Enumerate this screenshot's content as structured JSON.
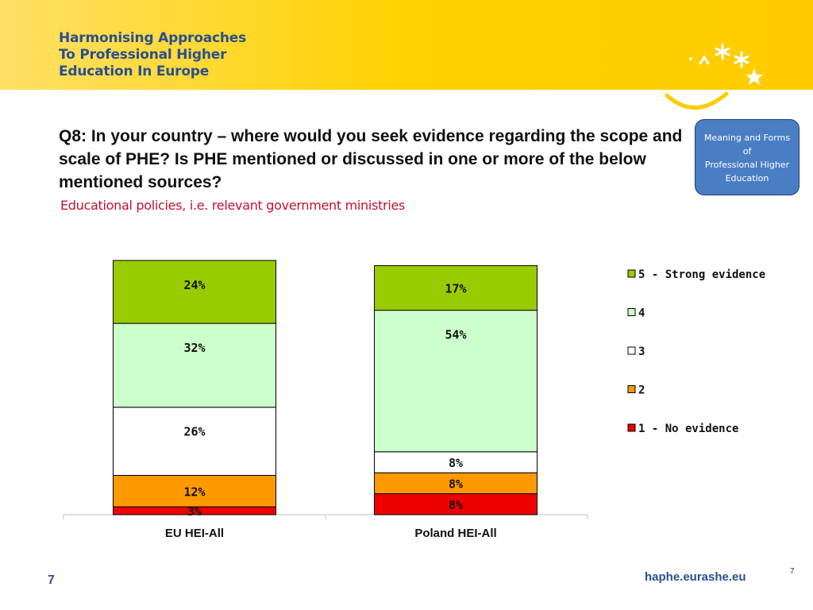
{
  "header": {
    "brand_lines": [
      "Harmonising Approaches",
      "To Professional Higher",
      "Education In Europe"
    ],
    "band_color": "#ffd100",
    "logo": "stars-and-smile-logo"
  },
  "question": "Q8: In your country – where would you seek evidence regarding the scope and scale of PHE? Is PHE mentioned or discussed in one or more of the below mentioned sources?",
  "subtitle": "Educational policies, i.e. relevant government ministries",
  "meaning_box": {
    "lines": [
      "Meaning and Forms",
      "of",
      "Professional Higher",
      "Education"
    ]
  },
  "chart_data": {
    "type": "bar",
    "stacked": true,
    "categories": [
      "EU HEI-All",
      "Poland HEI-All"
    ],
    "series": [
      {
        "name": "1 - No evidence",
        "color": "#ee0000",
        "values": [
          3,
          8
        ],
        "labels": [
          "3%",
          "8%"
        ]
      },
      {
        "name": "2",
        "color": "#ff9900",
        "values": [
          12,
          8
        ],
        "labels": [
          "12%",
          "8%"
        ]
      },
      {
        "name": "3",
        "color": "#ffffff",
        "values": [
          26,
          8
        ],
        "labels": [
          "26%",
          "8%"
        ]
      },
      {
        "name": "4",
        "color": "#ccffcc",
        "values": [
          32,
          54
        ],
        "labels": [
          "32%",
          "54%"
        ]
      },
      {
        "name": "5 - Strong evidence",
        "color": "#99cc00",
        "values": [
          24,
          17
        ],
        "labels": [
          "24%",
          "17%"
        ]
      }
    ],
    "legend_order": [
      "5 - Strong evidence",
      "4",
      "3",
      "2",
      "1 - No evidence"
    ],
    "legend_position": "right",
    "grid": false
  },
  "footer": {
    "page": "7",
    "site": "haphe.eurashe.eu",
    "slide_number": "7"
  }
}
